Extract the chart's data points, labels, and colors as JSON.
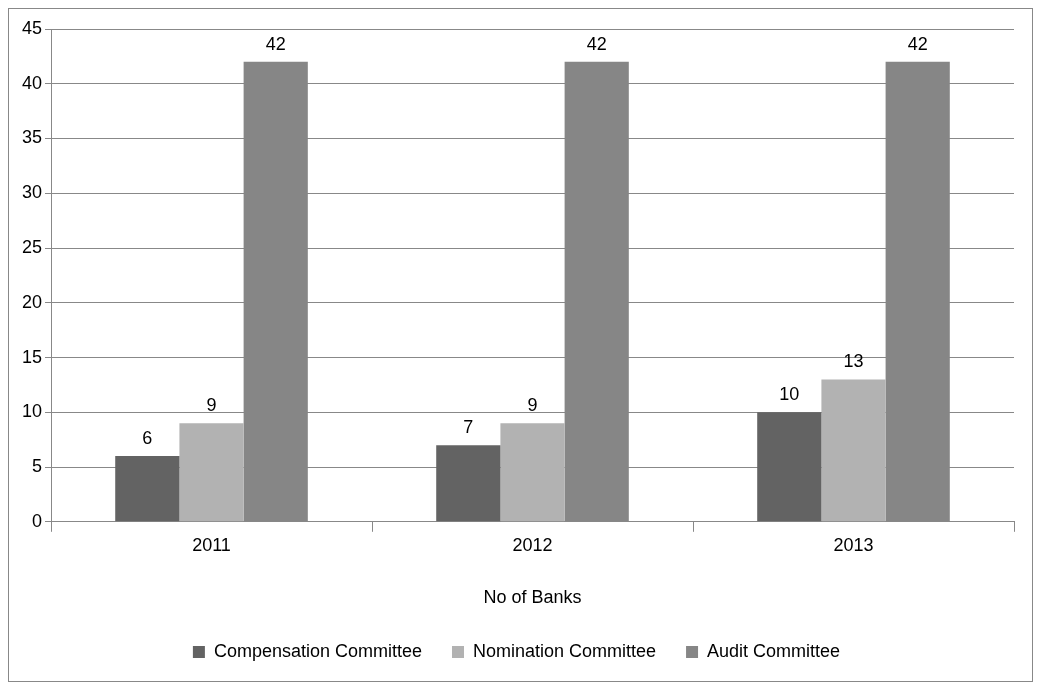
{
  "chart_data": {
    "type": "bar",
    "xlabel": "No of Banks",
    "categories": [
      "2011",
      "2012",
      "2013"
    ],
    "series": [
      {
        "name": "Compensation Committee",
        "color": "#636363",
        "values": [
          6,
          7,
          10
        ]
      },
      {
        "name": "Nomination Committee",
        "color": "#b2b2b2",
        "values": [
          9,
          9,
          13
        ]
      },
      {
        "name": "Audit Committee",
        "color": "#868686",
        "values": [
          42,
          42,
          42
        ]
      }
    ],
    "ylim": [
      0,
      45
    ],
    "yticks": [
      0,
      5,
      10,
      15,
      20,
      25,
      30,
      35,
      40,
      45
    ],
    "grid": "y",
    "legend": "bottom",
    "data_labels": true
  }
}
